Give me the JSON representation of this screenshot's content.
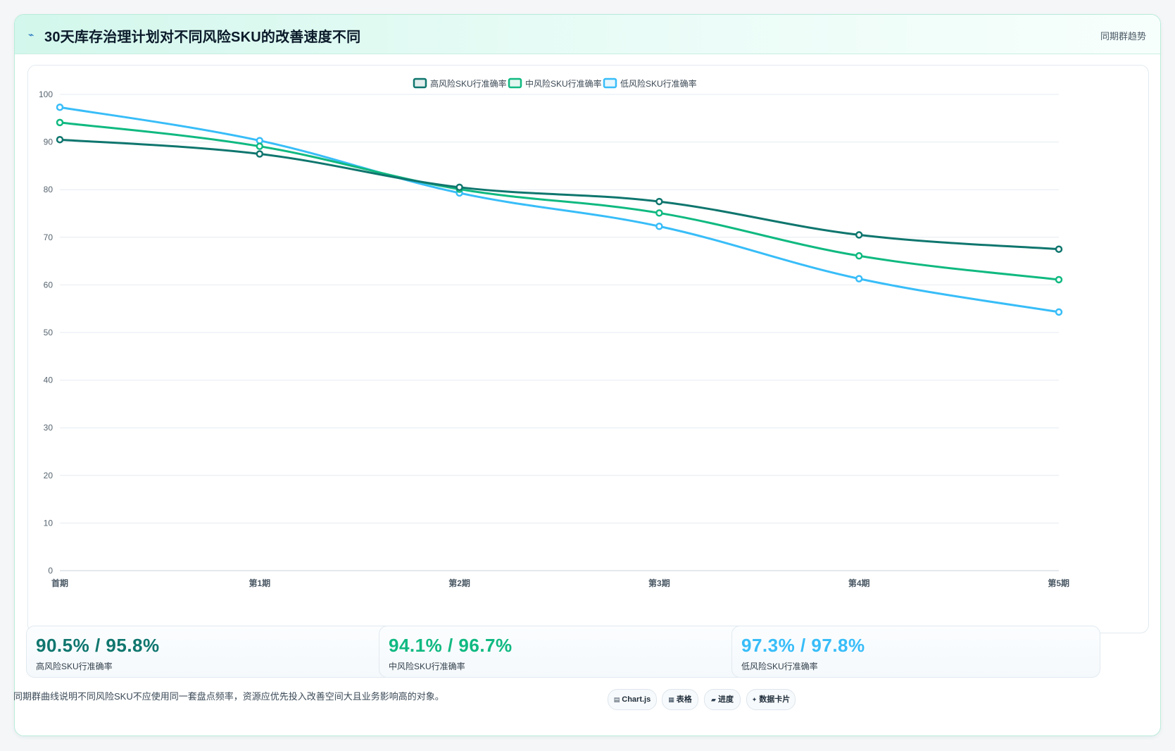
{
  "header": {
    "icon": "sparkline-icon",
    "title": "30天库存治理计划对不同风险SKU的改善速度不同",
    "right_label": "同期群趋势"
  },
  "chart_data": {
    "type": "line",
    "title": "",
    "xlabel": "",
    "ylabel": "",
    "categories": [
      "首期",
      "第1期",
      "第2期",
      "第3期",
      "第4期",
      "第5期"
    ],
    "ylim": [
      0,
      100
    ],
    "yticks": [
      0,
      10,
      20,
      30,
      40,
      50,
      60,
      70,
      80,
      90,
      100
    ],
    "grid": true,
    "legend_position": "top-center",
    "series": [
      {
        "name": "高风险SKU行准确率",
        "color": "#0f766e",
        "values": [
          90.5,
          87.5,
          80.5,
          77.5,
          70.5,
          67.5
        ]
      },
      {
        "name": "中风险SKU行准确率",
        "color": "#10b981",
        "values": [
          94.1,
          89.1,
          80.1,
          75.1,
          66.1,
          61.1
        ]
      },
      {
        "name": "低风险SKU行准确率",
        "color": "#38bdf8",
        "values": [
          97.3,
          90.3,
          79.3,
          72.3,
          61.3,
          54.3
        ]
      }
    ]
  },
  "stats": [
    {
      "value": "90.5% / 95.8%",
      "label": "高风险SKU行准确率",
      "color": "#0f766e"
    },
    {
      "value": "94.1% / 96.7%",
      "label": "中风险SKU行准确率",
      "color": "#10b981"
    },
    {
      "value": "97.3% / 97.8%",
      "label": "低风险SKU行准确率",
      "color": "#38bdf8"
    }
  ],
  "footer": {
    "note": "同期群曲线说明不同风险SKU不应使用同一套盘点频率，资源应优先投入改善空间大且业务影响高的对象。",
    "chips": [
      {
        "icon": "chart-icon",
        "label": "Chart.js"
      },
      {
        "icon": "table-icon",
        "label": "表格"
      },
      {
        "icon": "progress-icon",
        "label": "进度"
      },
      {
        "icon": "sparkle-icon",
        "label": "数据卡片"
      }
    ]
  }
}
